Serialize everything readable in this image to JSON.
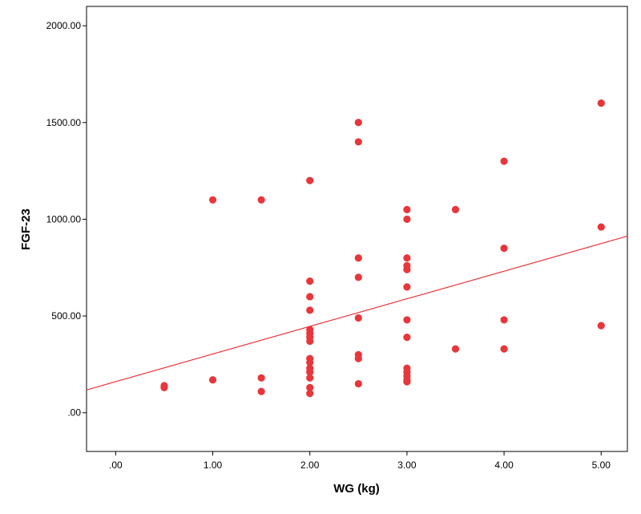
{
  "chart_data": {
    "type": "scatter",
    "xlabel": "WG (kg)",
    "ylabel": "FGF-23",
    "xlim": [
      -0.3,
      5.27
    ],
    "ylim": [
      -200,
      2100
    ],
    "xticks": [
      0,
      1,
      2,
      3,
      4,
      5
    ],
    "xtick_labels": [
      ".00",
      "1.00",
      "2.00",
      "3.00",
      "4.00",
      "5.00"
    ],
    "yticks": [
      0,
      500,
      1000,
      1500,
      2000
    ],
    "ytick_labels": [
      ".00",
      "500.00",
      "1000.00",
      "1500.00",
      "2000.00"
    ],
    "grid": false,
    "legend": "none",
    "colors": {
      "points": "#e8363b",
      "fit_line": "#e8363b",
      "frame": "#000000"
    },
    "fit_line": {
      "x": [
        -0.3,
        5.27
      ],
      "y": [
        118,
        913
      ]
    },
    "points": [
      {
        "x": 0.5,
        "y": 140
      },
      {
        "x": 0.5,
        "y": 130
      },
      {
        "x": 1.0,
        "y": 1100
      },
      {
        "x": 1.0,
        "y": 170
      },
      {
        "x": 1.5,
        "y": 1100
      },
      {
        "x": 1.5,
        "y": 180
      },
      {
        "x": 1.5,
        "y": 110
      },
      {
        "x": 2.0,
        "y": 1200
      },
      {
        "x": 2.0,
        "y": 680
      },
      {
        "x": 2.0,
        "y": 600
      },
      {
        "x": 2.0,
        "y": 530
      },
      {
        "x": 2.0,
        "y": 430
      },
      {
        "x": 2.0,
        "y": 410
      },
      {
        "x": 2.0,
        "y": 390
      },
      {
        "x": 2.0,
        "y": 370
      },
      {
        "x": 2.0,
        "y": 280
      },
      {
        "x": 2.0,
        "y": 260
      },
      {
        "x": 2.0,
        "y": 230
      },
      {
        "x": 2.0,
        "y": 210
      },
      {
        "x": 2.0,
        "y": 180
      },
      {
        "x": 2.0,
        "y": 130
      },
      {
        "x": 2.0,
        "y": 100
      },
      {
        "x": 2.5,
        "y": 1500
      },
      {
        "x": 2.5,
        "y": 1400
      },
      {
        "x": 2.5,
        "y": 800
      },
      {
        "x": 2.5,
        "y": 700
      },
      {
        "x": 2.5,
        "y": 490
      },
      {
        "x": 2.5,
        "y": 300
      },
      {
        "x": 2.5,
        "y": 280
      },
      {
        "x": 2.5,
        "y": 150
      },
      {
        "x": 3.0,
        "y": 1050
      },
      {
        "x": 3.0,
        "y": 1000
      },
      {
        "x": 3.0,
        "y": 800
      },
      {
        "x": 3.0,
        "y": 760
      },
      {
        "x": 3.0,
        "y": 740
      },
      {
        "x": 3.0,
        "y": 650
      },
      {
        "x": 3.0,
        "y": 480
      },
      {
        "x": 3.0,
        "y": 390
      },
      {
        "x": 3.0,
        "y": 230
      },
      {
        "x": 3.0,
        "y": 210
      },
      {
        "x": 3.0,
        "y": 190
      },
      {
        "x": 3.0,
        "y": 170
      },
      {
        "x": 3.0,
        "y": 160
      },
      {
        "x": 3.5,
        "y": 1050
      },
      {
        "x": 3.5,
        "y": 330
      },
      {
        "x": 4.0,
        "y": 1300
      },
      {
        "x": 4.0,
        "y": 850
      },
      {
        "x": 4.0,
        "y": 480
      },
      {
        "x": 4.0,
        "y": 330
      },
      {
        "x": 5.0,
        "y": 1600
      },
      {
        "x": 5.0,
        "y": 960
      },
      {
        "x": 5.0,
        "y": 450
      }
    ]
  }
}
